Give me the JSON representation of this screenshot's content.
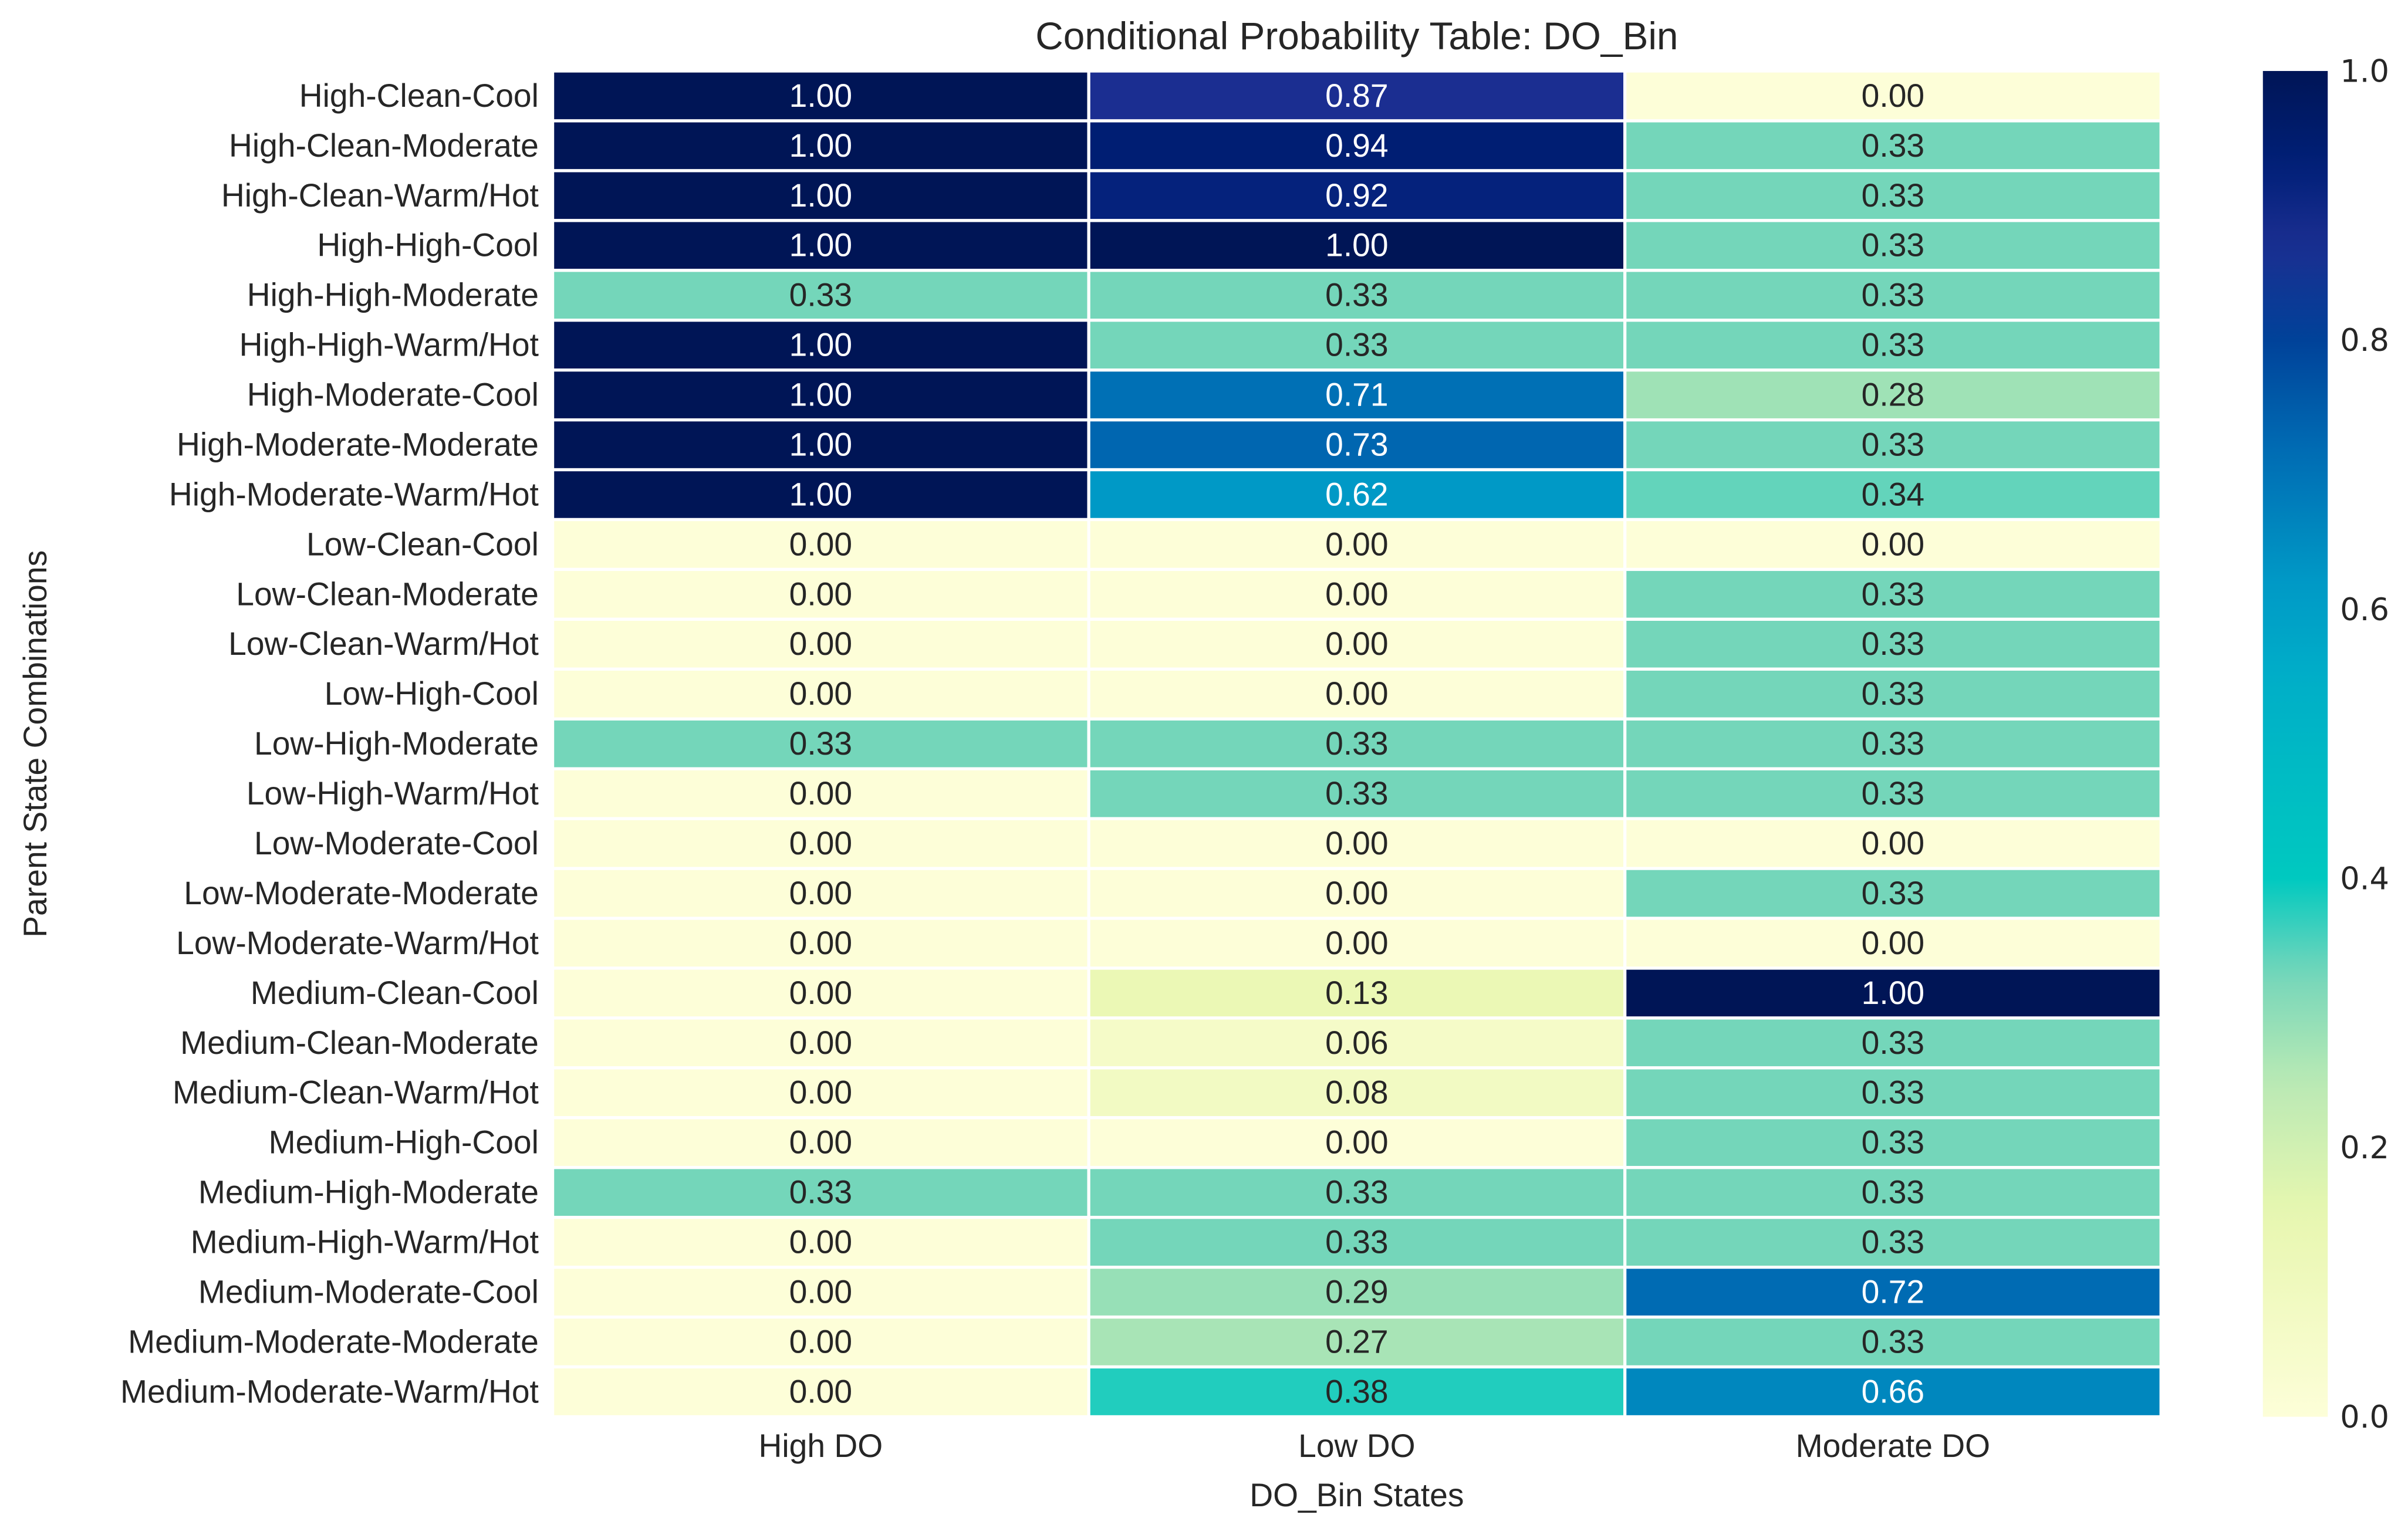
{
  "chart_data": {
    "type": "heatmap",
    "title": "Conditional Probability Table: DO_Bin",
    "xlabel": "DO_Bin States",
    "ylabel": "Parent State Combinations",
    "columns": [
      "High DO",
      "Low DO",
      "Moderate DO"
    ],
    "rows": [
      "High-Clean-Cool",
      "High-Clean-Moderate",
      "High-Clean-Warm/Hot",
      "High-High-Cool",
      "High-High-Moderate",
      "High-High-Warm/Hot",
      "High-Moderate-Cool",
      "High-Moderate-Moderate",
      "High-Moderate-Warm/Hot",
      "Low-Clean-Cool",
      "Low-Clean-Moderate",
      "Low-Clean-Warm/Hot",
      "Low-High-Cool",
      "Low-High-Moderate",
      "Low-High-Warm/Hot",
      "Low-Moderate-Cool",
      "Low-Moderate-Moderate",
      "Low-Moderate-Warm/Hot",
      "Medium-Clean-Cool",
      "Medium-Clean-Moderate",
      "Medium-Clean-Warm/Hot",
      "Medium-High-Cool",
      "Medium-High-Moderate",
      "Medium-High-Warm/Hot",
      "Medium-Moderate-Cool",
      "Medium-Moderate-Moderate",
      "Medium-Moderate-Warm/Hot"
    ],
    "values": [
      [
        1.0,
        0.87,
        0.0
      ],
      [
        1.0,
        0.94,
        0.33
      ],
      [
        1.0,
        0.92,
        0.33
      ],
      [
        1.0,
        1.0,
        0.33
      ],
      [
        0.33,
        0.33,
        0.33
      ],
      [
        1.0,
        0.33,
        0.33
      ],
      [
        1.0,
        0.71,
        0.28
      ],
      [
        1.0,
        0.73,
        0.33
      ],
      [
        1.0,
        0.62,
        0.34
      ],
      [
        0.0,
        0.0,
        0.0
      ],
      [
        0.0,
        0.0,
        0.33
      ],
      [
        0.0,
        0.0,
        0.33
      ],
      [
        0.0,
        0.0,
        0.33
      ],
      [
        0.33,
        0.33,
        0.33
      ],
      [
        0.0,
        0.33,
        0.33
      ],
      [
        0.0,
        0.0,
        0.0
      ],
      [
        0.0,
        0.0,
        0.33
      ],
      [
        0.0,
        0.0,
        0.0
      ],
      [
        0.0,
        0.13,
        1.0
      ],
      [
        0.0,
        0.06,
        0.33
      ],
      [
        0.0,
        0.08,
        0.33
      ],
      [
        0.0,
        0.0,
        0.33
      ],
      [
        0.33,
        0.33,
        0.33
      ],
      [
        0.0,
        0.33,
        0.33
      ],
      [
        0.0,
        0.29,
        0.72
      ],
      [
        0.0,
        0.27,
        0.33
      ],
      [
        0.0,
        0.38,
        0.66
      ]
    ],
    "value_format": "0.00",
    "colormap": "YlGnBu",
    "vlim": [
      0.0,
      1.0
    ],
    "colorbar_ticks": [
      "0.0",
      "0.2",
      "0.4",
      "0.6",
      "0.8",
      "1.0"
    ],
    "colorbar_tick_values": [
      0.0,
      0.2,
      0.4,
      0.6,
      0.8,
      1.0
    ],
    "colormap_stops": [
      [
        0.0,
        "#fdfed8"
      ],
      [
        0.15,
        "#e8f7b0"
      ],
      [
        0.25,
        "#b9e9b4"
      ],
      [
        0.33,
        "#74d6ba"
      ],
      [
        0.4,
        "#00c9c0"
      ],
      [
        0.55,
        "#00aec8"
      ],
      [
        0.62,
        "#0099c6"
      ],
      [
        0.72,
        "#006bb3"
      ],
      [
        0.8,
        "#004299"
      ],
      [
        0.87,
        "#1b2e91"
      ],
      [
        0.93,
        "#002078"
      ],
      [
        1.0,
        "#001556"
      ]
    ],
    "grid": false
  }
}
